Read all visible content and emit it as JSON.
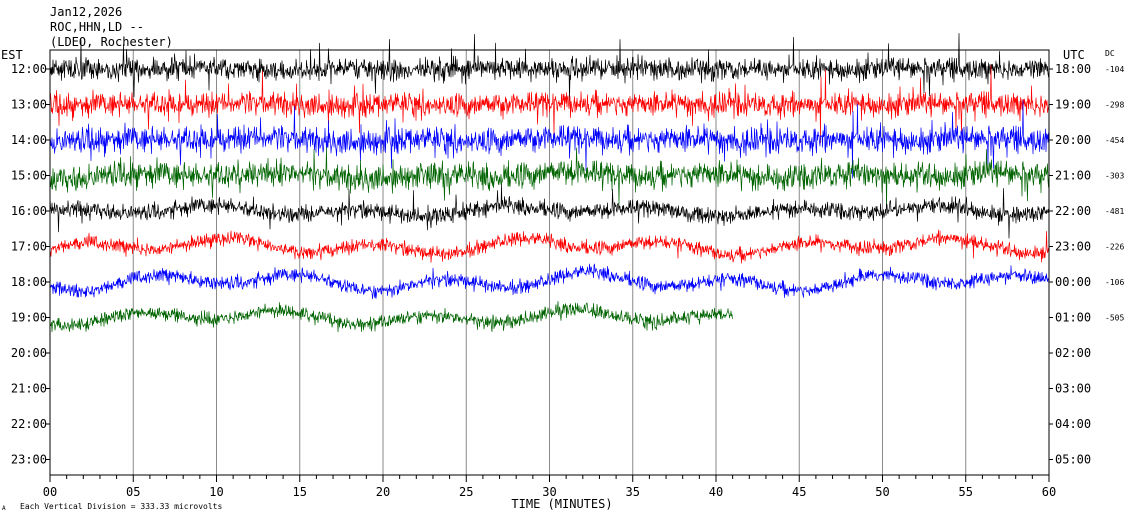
{
  "header": {
    "date": "Jan12,2026",
    "station": "ROC,HHN,LD --",
    "network": "(LDEO, Rochester)",
    "left_zone": "EST",
    "right_zone": "UTC",
    "dc_label": "DC"
  },
  "footer": {
    "x_title": "TIME (MINUTES)",
    "scale_note": "Each Vertical Division =  333.33 microvolts",
    "scale_mark": "A"
  },
  "chart_data": {
    "type": "line",
    "title": "",
    "xlabel": "TIME (MINUTES)",
    "ylabel": "",
    "xlim": [
      0,
      60
    ],
    "x_ticks": [
      "00",
      "05",
      "10",
      "15",
      "20",
      "25",
      "30",
      "35",
      "40",
      "45",
      "50",
      "55",
      "60"
    ],
    "grid": "vertical lines every 5 minutes",
    "left_labels": [
      "12:00",
      "13:00",
      "14:00",
      "15:00",
      "16:00",
      "17:00",
      "18:00",
      "19:00",
      "20:00",
      "21:00",
      "22:00",
      "23:00"
    ],
    "right_labels": [
      "18:00",
      "19:00",
      "20:00",
      "21:00",
      "22:00",
      "23:00",
      "00:00",
      "01:00",
      "02:00",
      "03:00",
      "04:00",
      "05:00"
    ],
    "dc_offsets": [
      "-104",
      "-298",
      "-454",
      "-303",
      "-481",
      "-226",
      "-106",
      "-505"
    ],
    "traces": [
      {
        "row": "12:00",
        "color": "#000000",
        "end_minute": 60
      },
      {
        "row": "13:00",
        "color": "#ff0000",
        "end_minute": 60
      },
      {
        "row": "14:00",
        "color": "#0000ff",
        "end_minute": 60
      },
      {
        "row": "15:00",
        "color": "#006400",
        "end_minute": 60
      },
      {
        "row": "16:00",
        "color": "#000000",
        "end_minute": 60
      },
      {
        "row": "17:00",
        "color": "#ff0000",
        "end_minute": 60
      },
      {
        "row": "18:00",
        "color": "#0000ff",
        "end_minute": 60
      },
      {
        "row": "19:00",
        "color": "#006400",
        "end_minute": 41
      }
    ]
  }
}
